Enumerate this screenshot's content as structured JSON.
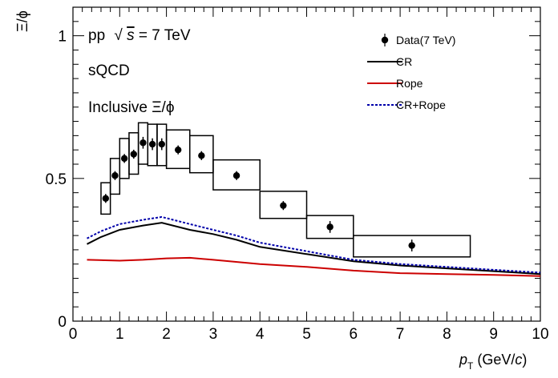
{
  "chart_data": {
    "type": "scatter",
    "xlim": [
      0,
      10
    ],
    "ylim": [
      0,
      1.1
    ],
    "x_ticks": [
      "0",
      "1",
      "2",
      "3",
      "4",
      "5",
      "6",
      "7",
      "8",
      "9",
      "10"
    ],
    "y_ticks": [
      "0",
      "0.5",
      "1"
    ],
    "xlabel": {
      "p": "p",
      "sub": "T",
      "rest": " (GeV/",
      "c": "c",
      "close": ")"
    },
    "ylabel": "Ξ/ϕ",
    "annotations": {
      "system": "pp",
      "sqrt": "√",
      "s": "s",
      "energy": " = 7 TeV",
      "model": "sQCD",
      "inclusive": "Inclusive Ξ/ϕ"
    },
    "legend": {
      "placement": "top-right",
      "entries": [
        {
          "key": "data",
          "label": "Data(7 TeV)",
          "marker": "point"
        },
        {
          "key": "cr",
          "label": "CR",
          "marker": "line",
          "color": "#000000",
          "dash": "solid"
        },
        {
          "key": "rope",
          "label": "Rope",
          "marker": "line",
          "color": "#cc0000",
          "dash": "solid"
        },
        {
          "key": "crrope",
          "label": "CR+Rope",
          "marker": "line",
          "color": "#0000aa",
          "dash": "dotted"
        }
      ]
    },
    "data": {
      "points": [
        {
          "x": 0.7,
          "y": 0.43,
          "xlo": 0.6,
          "xhi": 0.8,
          "ylo": 0.375,
          "yhi": 0.485,
          "err": 0.01
        },
        {
          "x": 0.9,
          "y": 0.51,
          "xlo": 0.8,
          "xhi": 1.0,
          "ylo": 0.445,
          "yhi": 0.57,
          "err": 0.01
        },
        {
          "x": 1.1,
          "y": 0.57,
          "xlo": 1.0,
          "xhi": 1.2,
          "ylo": 0.5,
          "yhi": 0.64,
          "err": 0.01
        },
        {
          "x": 1.3,
          "y": 0.585,
          "xlo": 1.2,
          "xhi": 1.4,
          "ylo": 0.515,
          "yhi": 0.66,
          "err": 0.01
        },
        {
          "x": 1.5,
          "y": 0.625,
          "xlo": 1.4,
          "xhi": 1.6,
          "ylo": 0.55,
          "yhi": 0.695,
          "err": 0.015
        },
        {
          "x": 1.7,
          "y": 0.62,
          "xlo": 1.6,
          "xhi": 1.8,
          "ylo": 0.545,
          "yhi": 0.69,
          "err": 0.015
        },
        {
          "x": 1.9,
          "y": 0.62,
          "xlo": 1.8,
          "xhi": 2.0,
          "ylo": 0.545,
          "yhi": 0.69,
          "err": 0.015
        },
        {
          "x": 2.25,
          "y": 0.6,
          "xlo": 2.0,
          "xhi": 2.5,
          "ylo": 0.535,
          "yhi": 0.67,
          "err": 0.01
        },
        {
          "x": 2.75,
          "y": 0.58,
          "xlo": 2.5,
          "xhi": 3.0,
          "ylo": 0.52,
          "yhi": 0.65,
          "err": 0.01
        },
        {
          "x": 3.5,
          "y": 0.51,
          "xlo": 3.0,
          "xhi": 4.0,
          "ylo": 0.46,
          "yhi": 0.565,
          "err": 0.01
        },
        {
          "x": 4.5,
          "y": 0.405,
          "xlo": 4.0,
          "xhi": 5.0,
          "ylo": 0.36,
          "yhi": 0.455,
          "err": 0.01
        },
        {
          "x": 5.5,
          "y": 0.33,
          "xlo": 5.0,
          "xhi": 6.0,
          "ylo": 0.29,
          "yhi": 0.37,
          "err": 0.015
        },
        {
          "x": 7.25,
          "y": 0.265,
          "xlo": 6.0,
          "xhi": 8.5,
          "ylo": 0.225,
          "yhi": 0.3,
          "err": 0.015
        }
      ]
    },
    "series": [
      {
        "key": "cr",
        "color": "#000000",
        "dash": "solid",
        "x": [
          0.3,
          0.6,
          1.0,
          1.5,
          1.9,
          2.5,
          3.0,
          3.5,
          4.0,
          5.0,
          6.0,
          7.0,
          8.0,
          9.0,
          10.0
        ],
        "y": [
          0.27,
          0.295,
          0.32,
          0.335,
          0.345,
          0.32,
          0.305,
          0.285,
          0.26,
          0.235,
          0.21,
          0.195,
          0.185,
          0.175,
          0.165
        ]
      },
      {
        "key": "rope",
        "color": "#cc0000",
        "dash": "solid",
        "x": [
          0.3,
          1.0,
          1.5,
          2.0,
          2.5,
          3.0,
          4.0,
          5.0,
          6.0,
          7.0,
          8.0,
          9.0,
          10.0
        ],
        "y": [
          0.215,
          0.212,
          0.215,
          0.22,
          0.222,
          0.215,
          0.2,
          0.19,
          0.177,
          0.168,
          0.165,
          0.162,
          0.158
        ]
      },
      {
        "key": "crrope",
        "color": "#0000aa",
        "dash": "dotted",
        "x": [
          0.3,
          0.6,
          1.0,
          1.5,
          1.9,
          2.5,
          3.0,
          3.5,
          4.0,
          5.0,
          6.0,
          7.0,
          8.0,
          9.0,
          10.0
        ],
        "y": [
          0.29,
          0.315,
          0.34,
          0.355,
          0.365,
          0.34,
          0.32,
          0.3,
          0.275,
          0.245,
          0.215,
          0.2,
          0.19,
          0.18,
          0.17
        ]
      }
    ]
  }
}
